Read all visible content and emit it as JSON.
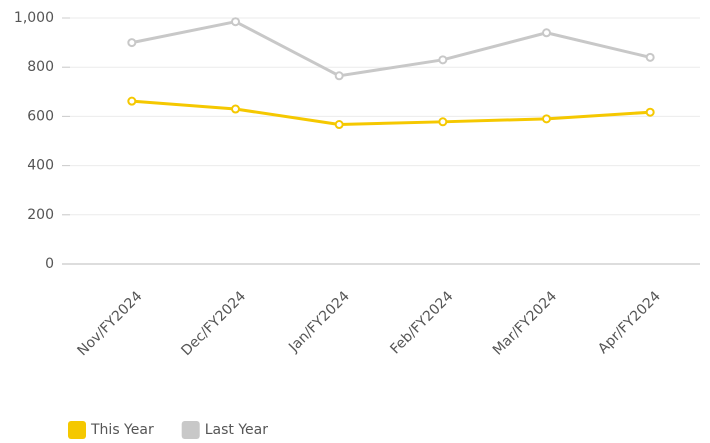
{
  "chart_data": {
    "type": "line",
    "categories": [
      "Nov/FY2024",
      "Dec/FY2024",
      "Jan/FY2024",
      "Feb/FY2024",
      "Mar/FY2024",
      "Apr/FY2024"
    ],
    "series": [
      {
        "name": "This Year",
        "color": "#f5c800",
        "values": [
          662,
          630,
          567,
          578,
          590,
          617
        ]
      },
      {
        "name": "Last Year",
        "color": "#c8c8c8",
        "values": [
          900,
          985,
          765,
          830,
          940,
          840
        ]
      }
    ],
    "ylim": [
      0,
      1000
    ],
    "yticks": [
      0,
      200,
      400,
      600,
      800,
      {
        "value": 1000,
        "label": "1,000"
      }
    ],
    "grid": true,
    "legend": "bottom-left"
  }
}
